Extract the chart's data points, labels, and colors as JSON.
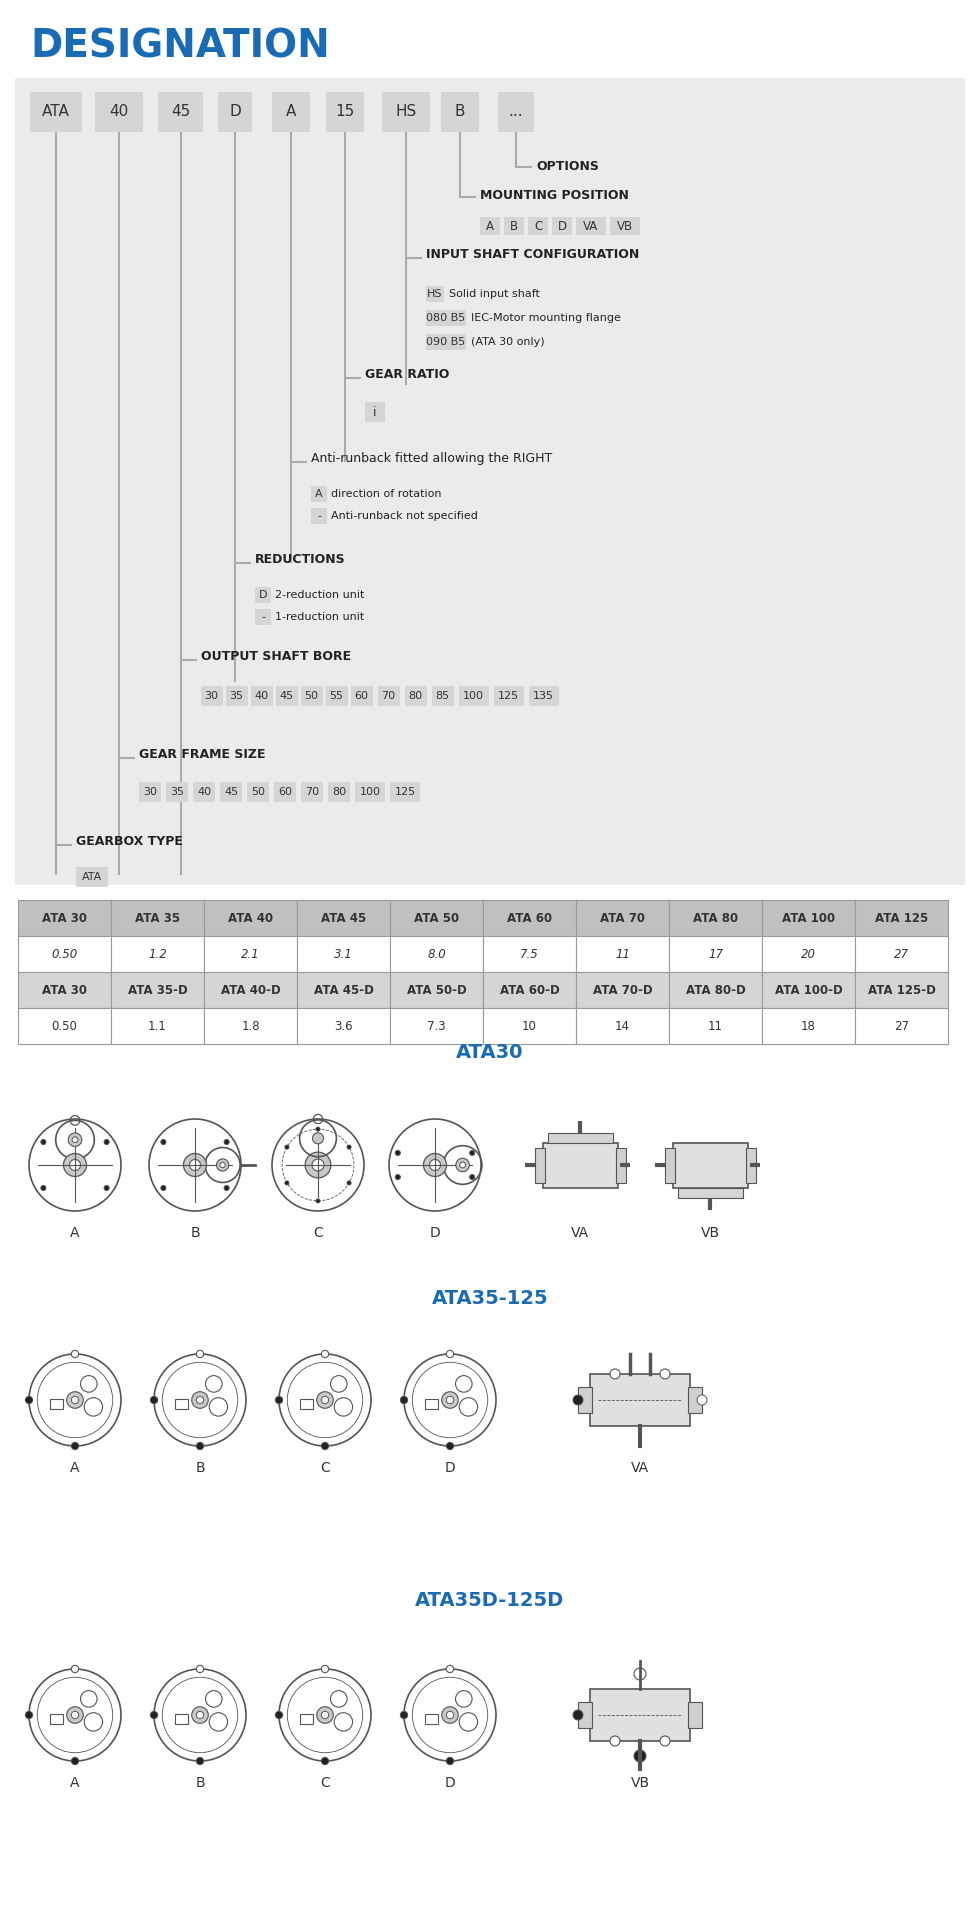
{
  "title": "DESIGNATION",
  "title_color": "#1A6BB5",
  "bg_color": "#ebebeb",
  "white_bg": "#ffffff",
  "box_labels": [
    "ATA",
    "40",
    "45",
    "D",
    "A",
    "15",
    "HS",
    "B",
    "..."
  ],
  "box_color": "#d5d5d5",
  "box_text_color": "#333333",
  "vertical_line_color": "#aaaaaa",
  "annotation_label_color": "#222222",
  "options_text": "OPTIONS",
  "mounting_position_text": "MOUNTING POSITION",
  "input_shaft_text": "INPUT SHAFT CONFIGURATION",
  "input_shaft_lines": [
    "HS",
    "Solid input shaft",
    "080 B5",
    "IEC-Motor mounting flange",
    "090 B5",
    "(ATA 30 only)"
  ],
  "gear_ratio_text": "GEAR RATIO",
  "gear_ratio_value": "i",
  "anti_runback_text": "Anti-runback fitted allowing the RIGHT",
  "reductions_text": "REDUCTIONS",
  "output_shaft_text": "OUTPUT SHAFT BORE",
  "gear_frame_text": "GEAR FRAME SIZE",
  "gearbox_type_text": "GEARBOX TYPE",
  "gearbox_type_value": "ATA",
  "table_row1_headers": [
    "ATA 30",
    "ATA 35",
    "ATA 40",
    "ATA 45",
    "ATA 50",
    "ATA 60",
    "ATA 70",
    "ATA 80",
    "ATA 100",
    "ATA 125"
  ],
  "table_row1_values": [
    "0.50",
    "1.2",
    "2.1",
    "3.1",
    "8.0",
    "7.5",
    "11",
    "17",
    "20",
    "27"
  ],
  "table_row2_headers": [
    "ATA 30",
    "ATA 35-D",
    "ATA 40-D",
    "ATA 45-D",
    "ATA 50-D",
    "ATA 60-D",
    "ATA 70-D",
    "ATA 80-D",
    "ATA 100-D",
    "ATA 125-D"
  ],
  "table_row2_values": [
    "0.50",
    "1.1",
    "1.8",
    "3.6",
    "7.3",
    "10",
    "14",
    "11",
    "18",
    "27"
  ],
  "section_titles": [
    "ATA30",
    "ATA35-125",
    "ATA35D-125D"
  ],
  "section_title_color": "#1A6BB5"
}
